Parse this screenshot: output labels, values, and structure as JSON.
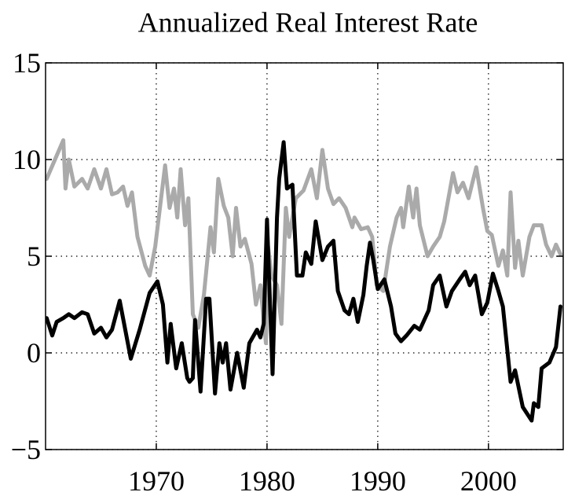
{
  "chart_data": {
    "type": "line",
    "title": "Annualized Real Interest Rate",
    "xlim": [
      1960,
      2006.75
    ],
    "ylim": [
      -5,
      15
    ],
    "xticks": [
      1970,
      1980,
      1990,
      2000
    ],
    "yticks": [
      {
        "value": -5,
        "label": "−5"
      },
      0,
      5,
      10,
      15
    ],
    "grid": true,
    "series": [
      {
        "color": "#aaaaaa",
        "x": [
          1960.1,
          1961.6,
          1961.8,
          1962.1,
          1962.6,
          1963.3,
          1963.8,
          1964.4,
          1965.0,
          1965.5,
          1966.0,
          1966.5,
          1967.0,
          1967.4,
          1967.8,
          1968.3,
          1969.0,
          1969.4,
          1969.9,
          1970.8,
          1971.2,
          1971.6,
          1971.9,
          1972.2,
          1972.6,
          1972.9,
          1973.3,
          1973.8,
          1974.3,
          1974.9,
          1975.2,
          1975.6,
          1976.1,
          1976.5,
          1976.9,
          1977.2,
          1977.6,
          1978.0,
          1978.6,
          1979.0,
          1979.4,
          1979.9,
          1980.1,
          1980.4,
          1980.9,
          1981.3,
          1981.7,
          1982.0,
          1982.6,
          1983.3,
          1984.0,
          1984.5,
          1985.0,
          1985.5,
          1986.0,
          1986.5,
          1987.1,
          1987.7,
          1987.9,
          1988.5,
          1989.1,
          1989.5,
          1989.9,
          1990.5,
          1991.1,
          1991.7,
          1992.1,
          1992.3,
          1992.8,
          1993.2,
          1993.5,
          1993.8,
          1994.5,
          1995.0,
          1995.6,
          1996.0,
          1996.8,
          1997.2,
          1997.7,
          1998.2,
          1998.9,
          1999.5,
          1999.9,
          2000.3,
          2000.9,
          2001.3,
          2001.7,
          2002.0,
          2002.4,
          2002.7,
          2003.1,
          2003.7,
          2004.1,
          2004.8,
          2005.2,
          2005.7,
          2006.1,
          2006.5
        ],
        "values": [
          9.0,
          11.0,
          8.5,
          10.0,
          8.6,
          9.0,
          8.5,
          9.5,
          8.5,
          9.5,
          8.2,
          8.3,
          8.6,
          7.6,
          8.3,
          6.0,
          4.5,
          4.0,
          5.5,
          9.7,
          7.5,
          8.5,
          7.0,
          9.5,
          6.6,
          8.0,
          2.0,
          1.3,
          3.0,
          6.5,
          5.2,
          9.0,
          7.6,
          7.0,
          5.0,
          7.5,
          5.5,
          5.9,
          4.6,
          2.5,
          3.5,
          0.5,
          5.5,
          4.0,
          3.5,
          1.5,
          7.5,
          6.0,
          8.0,
          8.4,
          9.5,
          8.0,
          10.5,
          8.5,
          7.7,
          8.0,
          7.5,
          6.5,
          7.0,
          6.4,
          6.5,
          6.0,
          3.5,
          3.2,
          5.5,
          7.0,
          7.5,
          6.5,
          8.6,
          7.0,
          8.5,
          6.6,
          5.0,
          5.5,
          6.0,
          6.8,
          9.3,
          8.3,
          8.8,
          8.0,
          9.6,
          7.5,
          6.3,
          6.1,
          4.5,
          5.3,
          4.0,
          8.3,
          4.4,
          5.8,
          4.0,
          6.0,
          6.6,
          6.6,
          5.6,
          5.0,
          5.6,
          5.1
        ]
      },
      {
        "color": "#000000",
        "x": [
          1960.1,
          1960.6,
          1961.0,
          1961.6,
          1962.1,
          1962.6,
          1963.3,
          1963.8,
          1964.4,
          1965.0,
          1965.5,
          1966.0,
          1966.7,
          1967.7,
          1968.5,
          1969.4,
          1970.1,
          1970.6,
          1971.0,
          1971.3,
          1971.8,
          1972.3,
          1972.8,
          1973.0,
          1973.3,
          1973.5,
          1974.0,
          1974.5,
          1974.8,
          1975.3,
          1975.7,
          1976.0,
          1976.3,
          1976.7,
          1977.3,
          1977.9,
          1978.4,
          1979.1,
          1979.4,
          1979.7,
          1980.0,
          1980.5,
          1980.9,
          1981.1,
          1981.5,
          1981.8,
          1982.3,
          1982.7,
          1983.2,
          1983.5,
          1984.0,
          1984.4,
          1985.0,
          1985.5,
          1986.0,
          1986.4,
          1987.0,
          1987.4,
          1987.8,
          1988.2,
          1988.7,
          1989.0,
          1989.3,
          1989.6,
          1990.0,
          1990.6,
          1991.2,
          1991.6,
          1992.1,
          1992.6,
          1993.3,
          1993.8,
          1994.6,
          1995.0,
          1995.6,
          1996.2,
          1996.7,
          1997.4,
          1997.9,
          1998.3,
          1998.8,
          1999.4,
          1999.9,
          2000.4,
          2000.9,
          2001.3,
          2002.0,
          2002.4,
          2003.1,
          2003.9,
          2004.1,
          2004.5,
          2004.8,
          2005.5,
          2006.1,
          2006.5
        ],
        "values": [
          1.8,
          0.9,
          1.6,
          1.8,
          2.0,
          1.8,
          2.1,
          2.0,
          1.0,
          1.3,
          0.8,
          1.2,
          2.7,
          -0.3,
          1.2,
          3.1,
          3.7,
          2.5,
          -0.5,
          1.5,
          -0.8,
          0.5,
          -1.3,
          -1.5,
          -1.3,
          1.7,
          -2.0,
          2.8,
          2.8,
          -2.1,
          0.5,
          -0.5,
          0.5,
          -1.9,
          0.0,
          -1.8,
          0.5,
          1.2,
          0.8,
          1.5,
          6.9,
          -1.1,
          7.0,
          9.0,
          10.9,
          8.5,
          8.7,
          4.0,
          4.0,
          5.2,
          4.6,
          6.8,
          4.8,
          5.5,
          5.8,
          3.2,
          2.2,
          2.0,
          2.8,
          1.6,
          3.0,
          4.5,
          5.7,
          4.8,
          3.3,
          3.8,
          2.4,
          1.0,
          0.6,
          0.9,
          1.4,
          1.2,
          2.2,
          3.5,
          4.0,
          2.4,
          3.2,
          3.8,
          4.2,
          3.5,
          4.0,
          2.0,
          2.6,
          4.1,
          3.2,
          2.4,
          -1.5,
          -0.9,
          -2.8,
          -3.5,
          -2.6,
          -2.8,
          -0.8,
          -0.5,
          0.3,
          2.4
        ]
      }
    ]
  }
}
